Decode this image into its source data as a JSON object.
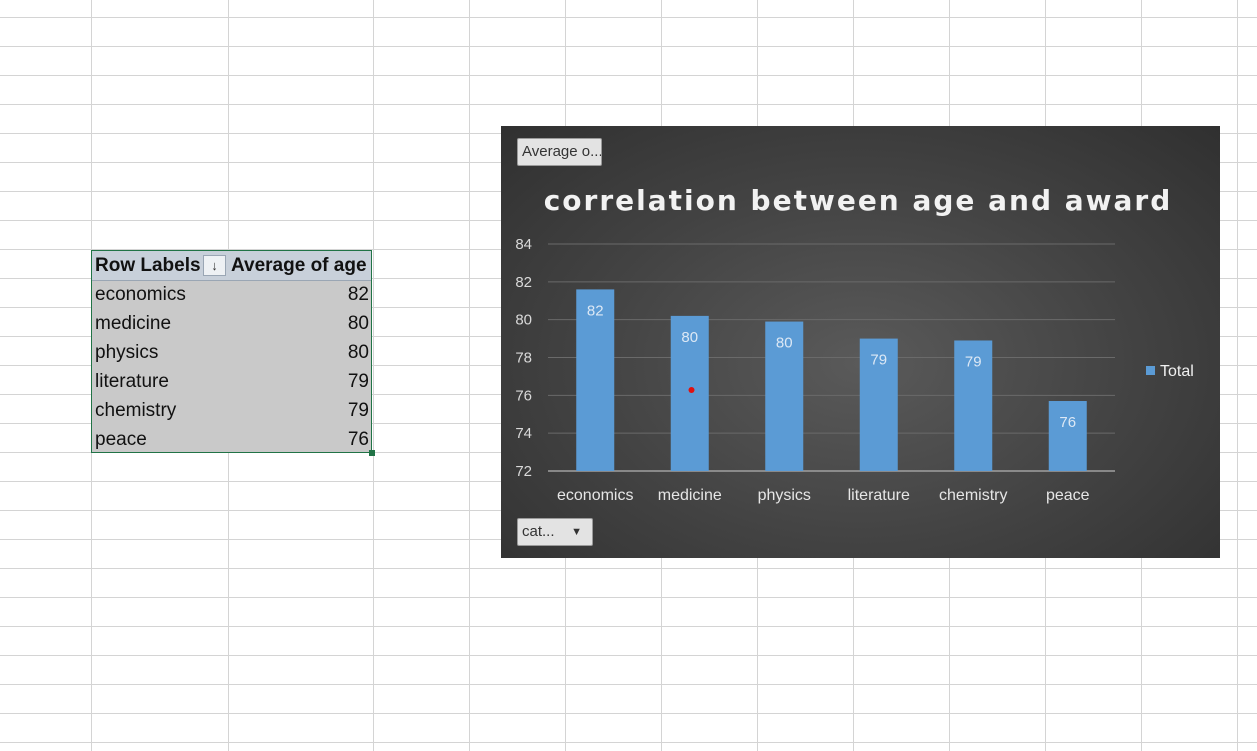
{
  "pivot": {
    "header_row_labels": "Row Labels",
    "header_value": "Average of age",
    "sort_icon": "↓",
    "rows": [
      {
        "label": "economics",
        "value": "82"
      },
      {
        "label": "medicine",
        "value": "80"
      },
      {
        "label": "physics",
        "value": "80"
      },
      {
        "label": "literature",
        "value": "79"
      },
      {
        "label": "chemistry",
        "value": "79"
      },
      {
        "label": "peace",
        "value": "76"
      }
    ]
  },
  "chart_buttons": {
    "value_field": "Average o...",
    "category_field": "cat...",
    "dropdown_icon": "▼"
  },
  "colors": {
    "bar": "#5b9bd5",
    "chart_bg": "#424242",
    "selection": "#217346"
  },
  "chart_data": {
    "type": "bar",
    "title": "correlation between age and award",
    "categories": [
      "economics",
      "medicine",
      "physics",
      "literature",
      "chemistry",
      "peace"
    ],
    "series": [
      {
        "name": "Total",
        "values": [
          81.6,
          80.2,
          79.9,
          79.0,
          78.9,
          75.7
        ]
      }
    ],
    "data_labels": [
      "82",
      "80",
      "80",
      "79",
      "79",
      "76"
    ],
    "ylim": [
      72,
      84
    ],
    "yticks": [
      72,
      74,
      76,
      78,
      80,
      82,
      84
    ],
    "xlabel": "",
    "ylabel": "",
    "grid": true,
    "legend": "right"
  }
}
